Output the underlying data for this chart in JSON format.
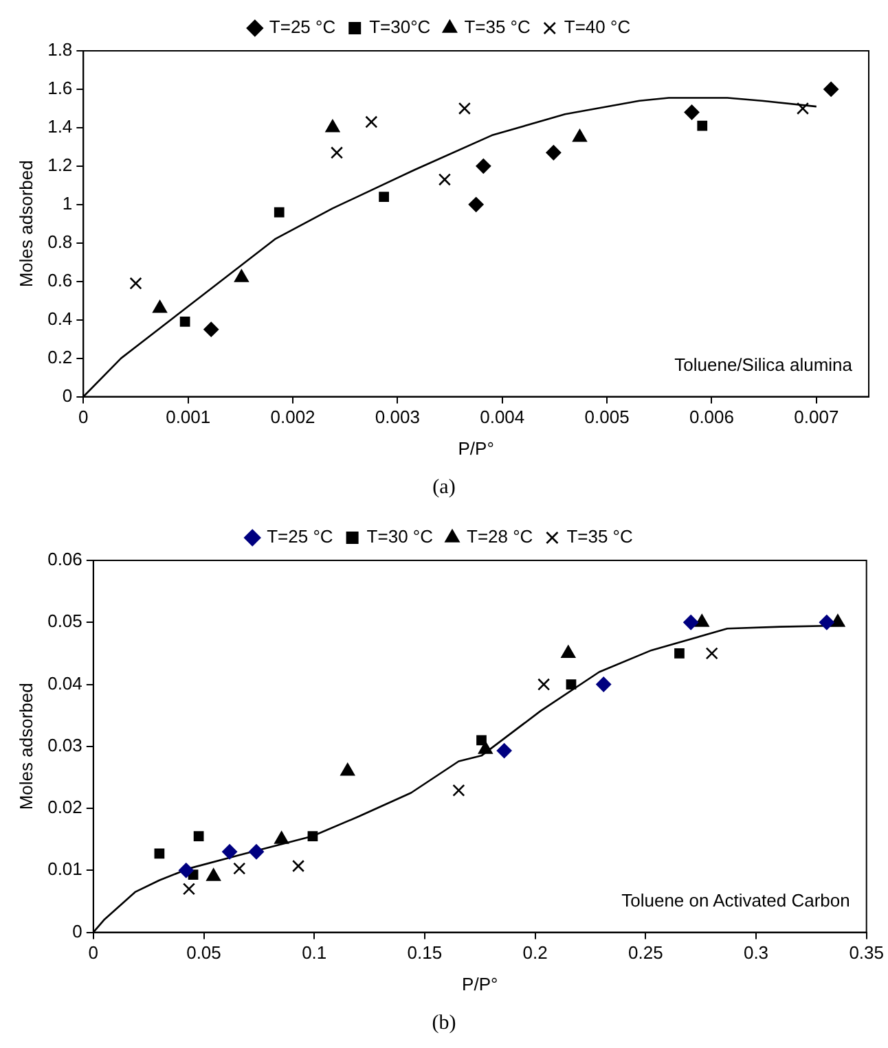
{
  "chart_data": [
    {
      "type": "scatter",
      "xlabel": "P/P°",
      "ylabel": "Moles adsorbed",
      "xlim": [
        0,
        0.0075
      ],
      "xticks": [
        0,
        0.001,
        0.002,
        0.003,
        0.004,
        0.005,
        0.006,
        0.007
      ],
      "ylim": [
        0,
        1.8
      ],
      "yticks": [
        0,
        0.2,
        0.4,
        0.6,
        0.8,
        1,
        1.2,
        1.4,
        1.6,
        1.8
      ],
      "grid": false,
      "legend": "top",
      "annotations": [
        "Toluene/Silica alumina",
        "(a)"
      ],
      "series": [
        {
          "name": "T=25 °C",
          "color": "#000000",
          "marker": "diamond",
          "x": [
            0.00122,
            0.00375,
            0.00382,
            0.00449,
            0.00581,
            0.00714
          ],
          "values": [
            0.35,
            1.0,
            1.2,
            1.27,
            1.48,
            1.6
          ]
        },
        {
          "name": "T=30°C",
          "color": "#000000",
          "marker": "square",
          "x": [
            0.00097,
            0.00187,
            0.00287,
            0.00591
          ],
          "values": [
            0.39,
            0.96,
            1.04,
            1.41
          ]
        },
        {
          "name": "T=35 °C",
          "color": "#000000",
          "marker": "triangle",
          "x": [
            0.00073,
            0.00151,
            0.00238,
            0.00474
          ],
          "values": [
            0.46,
            0.62,
            1.4,
            1.35
          ]
        },
        {
          "name": "T=40 °C",
          "color": "#000000",
          "marker": "cross",
          "x": [
            0.0005,
            0.00242,
            0.00275,
            0.00345,
            0.00364,
            0.00687
          ],
          "values": [
            0.59,
            1.27,
            1.43,
            1.13,
            1.5,
            1.5
          ]
        },
        {
          "type": "line",
          "color": "#000000",
          "marker": "none",
          "x": [
            0,
            0.00036,
            0.00151,
            0.00183,
            0.00238,
            0.00316,
            0.0039,
            0.0046,
            0.00531,
            0.00559,
            0.00615,
            0.00648,
            0.007
          ],
          "values": [
            0,
            0.2,
            0.685,
            0.82,
            0.98,
            1.18,
            1.36,
            1.47,
            1.54,
            1.555,
            1.555,
            1.54,
            1.51
          ]
        }
      ]
    },
    {
      "type": "scatter",
      "xlabel": "P/P°",
      "ylabel": "Moles adsorbed",
      "xlim": [
        0,
        0.35
      ],
      "xticks": [
        0,
        0.05,
        0.1,
        0.15,
        0.2,
        0.25,
        0.3,
        0.35
      ],
      "ylim": [
        0,
        0.06
      ],
      "yticks": [
        0,
        0.01,
        0.02,
        0.03,
        0.04,
        0.05,
        0.06
      ],
      "grid": false,
      "legend": "top",
      "annotations": [
        "Toluene on Activated Carbon",
        "(b)"
      ],
      "series": [
        {
          "name": "T=25 °C",
          "color": "#000080",
          "marker": "diamond",
          "x": [
            0.042,
            0.0617,
            0.0738,
            0.186,
            0.231,
            0.2705,
            0.332
          ],
          "values": [
            0.01,
            0.013,
            0.013,
            0.0293,
            0.04,
            0.05,
            0.05
          ]
        },
        {
          "name": "T=30 °C",
          "color": "#000000",
          "marker": "square",
          "x": [
            0.0299,
            0.0452,
            0.0477,
            0.0993,
            0.1757,
            0.2163,
            0.2653
          ],
          "values": [
            0.0127,
            0.0093,
            0.0155,
            0.0155,
            0.031,
            0.04,
            0.045
          ]
        },
        {
          "name": "T=28 °C",
          "color": "#000000",
          "marker": "triangle",
          "x": [
            0.0544,
            0.0852,
            0.1151,
            0.1775,
            0.215,
            0.2755,
            0.337
          ],
          "values": [
            0.009,
            0.015,
            0.026,
            0.0295,
            0.045,
            0.05,
            0.05
          ]
        },
        {
          "name": "T=35 °C",
          "color": "#000000",
          "marker": "cross",
          "x": [
            0.0433,
            0.0661,
            0.0928,
            0.1654,
            0.2039,
            0.28
          ],
          "values": [
            0.007,
            0.0103,
            0.0107,
            0.0229,
            0.04,
            0.045
          ]
        },
        {
          "type": "line",
          "color": "#000000",
          "marker": "none",
          "x": [
            0,
            0.0048,
            0.0189,
            0.0299,
            0.0433,
            0.0665,
            0.099,
            0.1202,
            0.1438,
            0.1654,
            0.1757,
            0.2024,
            0.229,
            0.2526,
            0.287,
            0.311,
            0.34
          ],
          "values": [
            0,
            0.002,
            0.0065,
            0.0084,
            0.0103,
            0.0125,
            0.0155,
            0.0187,
            0.0225,
            0.0276,
            0.0285,
            0.0357,
            0.042,
            0.0455,
            0.049,
            0.0493,
            0.0495
          ]
        }
      ]
    }
  ]
}
